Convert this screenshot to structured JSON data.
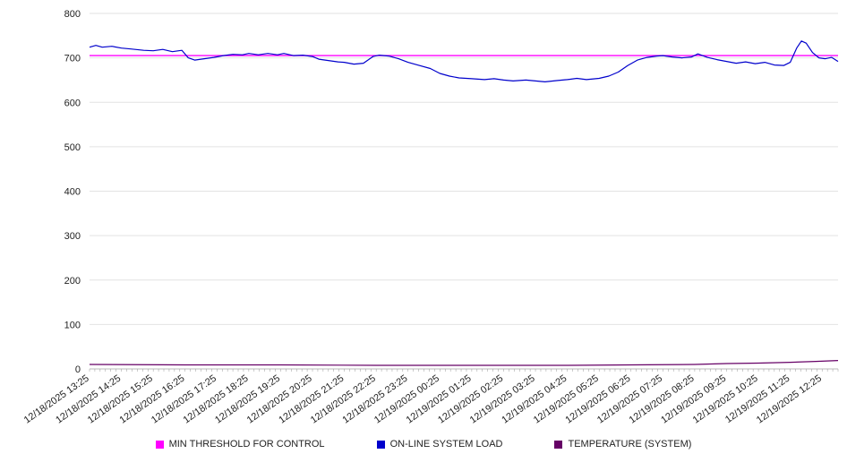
{
  "chart_data": {
    "type": "line",
    "title": "",
    "xlabel": "",
    "ylabel": "",
    "ylim": [
      0,
      800
    ],
    "y_ticks": [
      0,
      100,
      200,
      300,
      400,
      500,
      600,
      700,
      800
    ],
    "x_domain_hours": [
      0,
      23.5
    ],
    "grid": true,
    "legend_position": "bottom",
    "x_labels": [
      "12/18/2025 13:25",
      "12/18/2025 14:25",
      "12/18/2025 15:25",
      "12/18/2025 16:25",
      "12/18/2025 17:25",
      "12/18/2025 18:25",
      "12/18/2025 19:25",
      "12/18/2025 20:25",
      "12/18/2025 21:25",
      "12/18/2025 22:25",
      "12/18/2025 23:25",
      "12/19/2025 00:25",
      "12/19/2025 01:25",
      "12/19/2025 02:25",
      "12/19/2025 03:25",
      "12/19/2025 04:25",
      "12/19/2025 05:25",
      "12/19/2025 06:25",
      "12/19/2025 07:25",
      "12/19/2025 08:25",
      "12/19/2025 09:25",
      "12/19/2025 10:25",
      "12/19/2025 11:25",
      "12/19/2025 12:25"
    ],
    "series": [
      {
        "name": "MIN THRESHOLD FOR CONTROL",
        "color": "#ff00ff",
        "width": 1.4,
        "points": [
          [
            0,
            705
          ],
          [
            23.5,
            705
          ]
        ]
      },
      {
        "name": "ON-LINE SYSTEM LOAD",
        "color": "#0000cc",
        "width": 1.2,
        "points": [
          [
            0,
            724
          ],
          [
            0.2,
            728
          ],
          [
            0.4,
            724
          ],
          [
            0.7,
            726
          ],
          [
            1,
            722
          ],
          [
            1.3,
            720
          ],
          [
            1.7,
            717
          ],
          [
            2,
            716
          ],
          [
            2.3,
            719
          ],
          [
            2.6,
            714
          ],
          [
            2.9,
            717
          ],
          [
            3.1,
            700
          ],
          [
            3.3,
            695
          ],
          [
            3.6,
            698
          ],
          [
            3.9,
            701
          ],
          [
            4.2,
            705
          ],
          [
            4.5,
            708
          ],
          [
            4.8,
            707
          ],
          [
            5,
            710
          ],
          [
            5.3,
            707
          ],
          [
            5.6,
            710
          ],
          [
            5.9,
            707
          ],
          [
            6.1,
            710
          ],
          [
            6.4,
            705
          ],
          [
            6.7,
            706
          ],
          [
            7,
            703
          ],
          [
            7.2,
            697
          ],
          [
            7.5,
            694
          ],
          [
            7.8,
            691
          ],
          [
            8,
            690
          ],
          [
            8.3,
            686
          ],
          [
            8.6,
            688
          ],
          [
            8.9,
            703
          ],
          [
            9.1,
            706
          ],
          [
            9.4,
            704
          ],
          [
            9.7,
            698
          ],
          [
            10,
            690
          ],
          [
            10.3,
            684
          ],
          [
            10.7,
            676
          ],
          [
            11,
            665
          ],
          [
            11.3,
            659
          ],
          [
            11.6,
            655
          ],
          [
            12,
            653
          ],
          [
            12.4,
            651
          ],
          [
            12.7,
            653
          ],
          [
            13,
            650
          ],
          [
            13.3,
            648
          ],
          [
            13.7,
            650
          ],
          [
            14,
            648
          ],
          [
            14.3,
            646
          ],
          [
            14.7,
            649
          ],
          [
            15,
            651
          ],
          [
            15.3,
            654
          ],
          [
            15.6,
            651
          ],
          [
            16,
            654
          ],
          [
            16.3,
            659
          ],
          [
            16.6,
            668
          ],
          [
            16.9,
            683
          ],
          [
            17.2,
            695
          ],
          [
            17.5,
            701
          ],
          [
            17.8,
            704
          ],
          [
            18,
            705
          ],
          [
            18.3,
            702
          ],
          [
            18.6,
            700
          ],
          [
            18.9,
            702
          ],
          [
            19.1,
            709
          ],
          [
            19.4,
            701
          ],
          [
            19.7,
            696
          ],
          [
            20,
            692
          ],
          [
            20.3,
            688
          ],
          [
            20.6,
            691
          ],
          [
            20.9,
            687
          ],
          [
            21.2,
            690
          ],
          [
            21.5,
            684
          ],
          [
            21.8,
            683
          ],
          [
            22,
            690
          ],
          [
            22.2,
            722
          ],
          [
            22.35,
            738
          ],
          [
            22.5,
            733
          ],
          [
            22.7,
            712
          ],
          [
            22.9,
            700
          ],
          [
            23.1,
            698
          ],
          [
            23.3,
            701
          ],
          [
            23.5,
            692
          ]
        ]
      },
      {
        "name": "TEMPERATURE (SYSTEM)",
        "color": "#660066",
        "width": 1.2,
        "points": [
          [
            0,
            10
          ],
          [
            3,
            9
          ],
          [
            6,
            9
          ],
          [
            9,
            8
          ],
          [
            12,
            8
          ],
          [
            15,
            8
          ],
          [
            17,
            9
          ],
          [
            19,
            10
          ],
          [
            20,
            12
          ],
          [
            21,
            13
          ],
          [
            22,
            15
          ],
          [
            22.8,
            17
          ],
          [
            23.5,
            19
          ]
        ]
      }
    ]
  }
}
